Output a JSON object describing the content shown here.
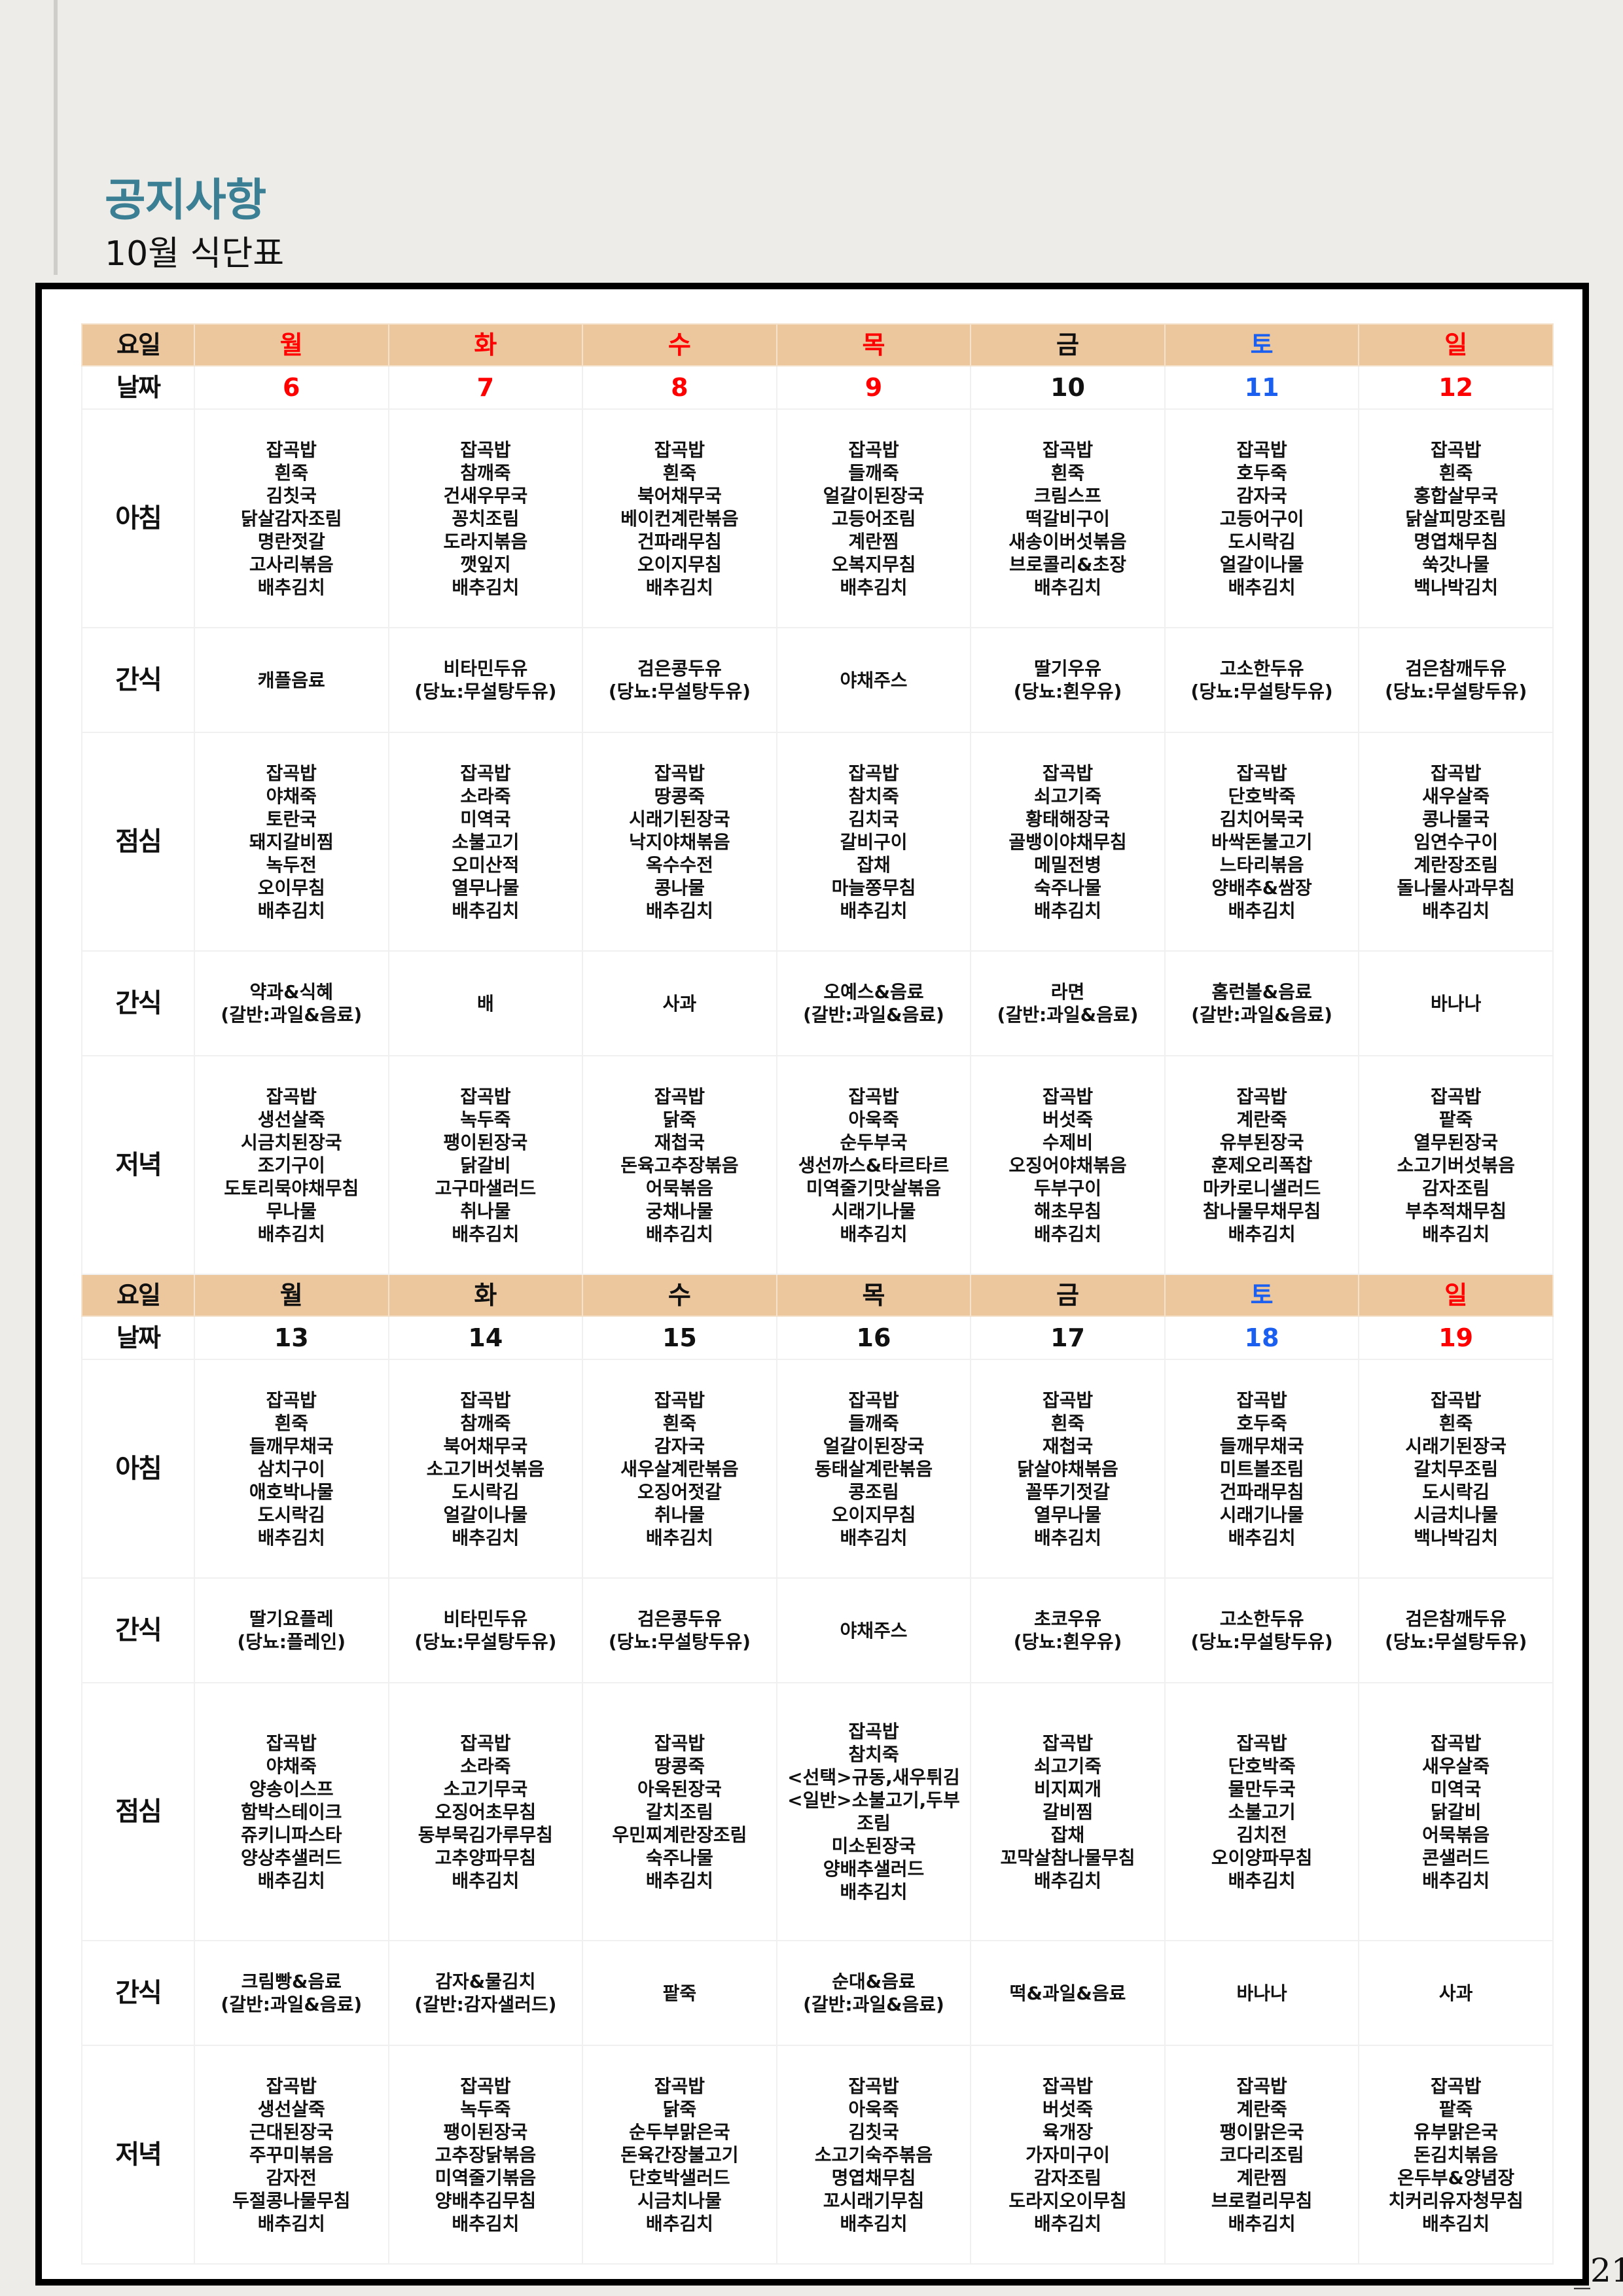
{
  "header": {
    "title": "공지사항",
    "subtitle": "10월 식단표"
  },
  "page_number": "_21",
  "colors": {
    "accent": "#3a7f93",
    "header_bg": "#ecc69c",
    "weekday_red": "#ff0000",
    "saturday_blue": "#1a5ff0",
    "weekday_black": "#111111"
  },
  "labels": {
    "day": "요일",
    "date": "날짜",
    "breakfast": "아침",
    "snack": "간식",
    "lunch": "점심",
    "dinner": "저녁"
  },
  "weeks": [
    {
      "days": [
        {
          "name": "월",
          "date": "6",
          "color": "#ff0000"
        },
        {
          "name": "화",
          "date": "7",
          "color": "#ff0000"
        },
        {
          "name": "수",
          "date": "8",
          "color": "#ff0000"
        },
        {
          "name": "목",
          "date": "9",
          "color": "#ff0000"
        },
        {
          "name": "금",
          "date": "10",
          "color": "#111111"
        },
        {
          "name": "토",
          "date": "11",
          "color": "#1a5ff0"
        },
        {
          "name": "일",
          "date": "12",
          "color": "#ff0000"
        }
      ],
      "breakfast": [
        [
          "잡곡밥",
          "흰죽",
          "김칫국",
          "닭살감자조림",
          "명란젓갈",
          "고사리볶음",
          "배추김치"
        ],
        [
          "잡곡밥",
          "참깨죽",
          "건새우무국",
          "꽁치조림",
          "도라지볶음",
          "깻잎지",
          "배추김치"
        ],
        [
          "잡곡밥",
          "흰죽",
          "북어채무국",
          "베이컨계란볶음",
          "건파래무침",
          "오이지무침",
          "배추김치"
        ],
        [
          "잡곡밥",
          "들깨죽",
          "얼갈이된장국",
          "고등어조림",
          "계란찜",
          "오복지무침",
          "배추김치"
        ],
        [
          "잡곡밥",
          "흰죽",
          "크림스프",
          "떡갈비구이",
          "새송이버섯볶음",
          "브로콜리&초장",
          "배추김치"
        ],
        [
          "잡곡밥",
          "호두죽",
          "감자국",
          "고등어구이",
          "도시락김",
          "얼갈이나물",
          "배추김치"
        ],
        [
          "잡곡밥",
          "흰죽",
          "홍합살무국",
          "닭살피망조림",
          "명엽채무침",
          "쑥갓나물",
          "백나박김치"
        ]
      ],
      "snack_am": [
        [
          "캐플음료"
        ],
        [
          "비타민두유",
          "(당뇨:무설탕두유)"
        ],
        [
          "검은콩두유",
          "(당뇨:무설탕두유)"
        ],
        [
          "야채주스"
        ],
        [
          "딸기우유",
          "(당뇨:흰우유)"
        ],
        [
          "고소한두유",
          "(당뇨:무설탕두유)"
        ],
        [
          "검은참깨두유",
          "(당뇨:무설탕두유)"
        ]
      ],
      "lunch": [
        [
          "잡곡밥",
          "야채죽",
          "토란국",
          "돼지갈비찜",
          "녹두전",
          "오이무침",
          "배추김치"
        ],
        [
          "잡곡밥",
          "소라죽",
          "미역국",
          "소불고기",
          "오미산적",
          "열무나물",
          "배추김치"
        ],
        [
          "잡곡밥",
          "땅콩죽",
          "시래기된장국",
          "낙지야채볶음",
          "옥수수전",
          "콩나물",
          "배추김치"
        ],
        [
          "잡곡밥",
          "참치죽",
          "김치국",
          "갈비구이",
          "잡채",
          "마늘쫑무침",
          "배추김치"
        ],
        [
          "잡곡밥",
          "쇠고기죽",
          "황태해장국",
          "골뱅이야채무침",
          "메밀전병",
          "숙주나물",
          "배추김치"
        ],
        [
          "잡곡밥",
          "단호박죽",
          "김치어묵국",
          "바싹돈불고기",
          "느타리볶음",
          "양배추&쌈장",
          "배추김치"
        ],
        [
          "잡곡밥",
          "새우살죽",
          "콩나물국",
          "임연수구이",
          "계란장조림",
          "돌나물사과무침",
          "배추김치"
        ]
      ],
      "snack_pm": [
        [
          "약과&식혜",
          "(갈반:과일&음료)"
        ],
        [
          "배"
        ],
        [
          "사과"
        ],
        [
          "오예스&음료",
          "(갈반:과일&음료)"
        ],
        [
          "라면",
          "(갈반:과일&음료)"
        ],
        [
          "홈런볼&음료",
          "(갈반:과일&음료)"
        ],
        [
          "바나나"
        ]
      ],
      "dinner": [
        [
          "잡곡밥",
          "생선살죽",
          "시금치된장국",
          "조기구이",
          "도토리묵야채무침",
          "무나물",
          "배추김치"
        ],
        [
          "잡곡밥",
          "녹두죽",
          "팽이된장국",
          "닭갈비",
          "고구마샐러드",
          "취나물",
          "배추김치"
        ],
        [
          "잡곡밥",
          "닭죽",
          "재첩국",
          "돈육고추장볶음",
          "어묵볶음",
          "궁채나물",
          "배추김치"
        ],
        [
          "잡곡밥",
          "아욱죽",
          "순두부국",
          "생선까스&타르타르",
          "미역줄기맛살볶음",
          "시래기나물",
          "배추김치"
        ],
        [
          "잡곡밥",
          "버섯죽",
          "수제비",
          "오징어야채볶음",
          "두부구이",
          "해초무침",
          "배추김치"
        ],
        [
          "잡곡밥",
          "계란죽",
          "유부된장국",
          "훈제오리폭찹",
          "마카로니샐러드",
          "참나물무채무침",
          "배추김치"
        ],
        [
          "잡곡밥",
          "팥죽",
          "열무된장국",
          "소고기버섯볶음",
          "감자조림",
          "부추적채무침",
          "배추김치"
        ]
      ]
    },
    {
      "days": [
        {
          "name": "월",
          "date": "13",
          "color": "#111111"
        },
        {
          "name": "화",
          "date": "14",
          "color": "#111111"
        },
        {
          "name": "수",
          "date": "15",
          "color": "#111111"
        },
        {
          "name": "목",
          "date": "16",
          "color": "#111111"
        },
        {
          "name": "금",
          "date": "17",
          "color": "#111111"
        },
        {
          "name": "토",
          "date": "18",
          "color": "#1a5ff0"
        },
        {
          "name": "일",
          "date": "19",
          "color": "#ff0000"
        }
      ],
      "breakfast": [
        [
          "잡곡밥",
          "흰죽",
          "들깨무채국",
          "삼치구이",
          "애호박나물",
          "도시락김",
          "배추김치"
        ],
        [
          "잡곡밥",
          "참깨죽",
          "북어채무국",
          "소고기버섯볶음",
          "도시락김",
          "얼갈이나물",
          "배추김치"
        ],
        [
          "잡곡밥",
          "흰죽",
          "감자국",
          "새우살계란볶음",
          "오징어젓갈",
          "취나물",
          "배추김치"
        ],
        [
          "잡곡밥",
          "들깨죽",
          "얼갈이된장국",
          "동태살계란볶음",
          "콩조림",
          "오이지무침",
          "배추김치"
        ],
        [
          "잡곡밥",
          "흰죽",
          "재첩국",
          "닭살야채볶음",
          "꼴뚜기젓갈",
          "열무나물",
          "배추김치"
        ],
        [
          "잡곡밥",
          "호두죽",
          "들깨무채국",
          "미트볼조림",
          "건파래무침",
          "시래기나물",
          "배추김치"
        ],
        [
          "잡곡밥",
          "흰죽",
          "시래기된장국",
          "갈치무조림",
          "도시락김",
          "시금치나물",
          "백나박김치"
        ]
      ],
      "snack_am": [
        [
          "딸기요플레",
          "(당뇨:플레인)"
        ],
        [
          "비타민두유",
          "(당뇨:무설탕두유)"
        ],
        [
          "검은콩두유",
          "(당뇨:무설탕두유)"
        ],
        [
          "야채주스"
        ],
        [
          "초코우유",
          "(당뇨:흰우유)"
        ],
        [
          "고소한두유",
          "(당뇨:무설탕두유)"
        ],
        [
          "검은참깨두유",
          "(당뇨:무설탕두유)"
        ]
      ],
      "lunch": [
        [
          "잡곡밥",
          "야채죽",
          "양송이스프",
          "함박스테이크",
          "쥬키니파스타",
          "양상추샐러드",
          "배추김치"
        ],
        [
          "잡곡밥",
          "소라죽",
          "소고기무국",
          "오징어초무침",
          "동부묵김가루무침",
          "고추양파무침",
          "배추김치"
        ],
        [
          "잡곡밥",
          "땅콩죽",
          "아욱된장국",
          "갈치조림",
          "우민찌계란장조림",
          "숙주나물",
          "배추김치"
        ],
        [
          "잡곡밥",
          "참치죽",
          "<선택>규동,새우튀김",
          "<일반>소불고기,두부",
          "조림",
          "미소된장국",
          "양배추샐러드",
          "배추김치"
        ],
        [
          "잡곡밥",
          "쇠고기죽",
          "비지찌개",
          "갈비찜",
          "잡채",
          "꼬막살참나물무침",
          "배추김치"
        ],
        [
          "잡곡밥",
          "단호박죽",
          "물만두국",
          "소불고기",
          "김치전",
          "오이양파무침",
          "배추김치"
        ],
        [
          "잡곡밥",
          "새우살죽",
          "미역국",
          "닭갈비",
          "어묵볶음",
          "콘샐러드",
          "배추김치"
        ]
      ],
      "snack_pm": [
        [
          "크림빵&음료",
          "(갈반:과일&음료)"
        ],
        [
          "감자&물김치",
          "(갈반:감자샐러드)"
        ],
        [
          "팥죽"
        ],
        [
          "순대&음료",
          "(갈반:과일&음료)"
        ],
        [
          "떡&과일&음료"
        ],
        [
          "바나나"
        ],
        [
          "사과"
        ]
      ],
      "dinner": [
        [
          "잡곡밥",
          "생선살죽",
          "근대된장국",
          "주꾸미볶음",
          "감자전",
          "두절콩나물무침",
          "배추김치"
        ],
        [
          "잡곡밥",
          "녹두죽",
          "팽이된장국",
          "고추장닭볶음",
          "미역줄기볶음",
          "양배추김무침",
          "배추김치"
        ],
        [
          "잡곡밥",
          "닭죽",
          "순두부맑은국",
          "돈육간장불고기",
          "단호박샐러드",
          "시금치나물",
          "배추김치"
        ],
        [
          "잡곡밥",
          "아욱죽",
          "김칫국",
          "소고기숙주볶음",
          "명엽채무침",
          "꼬시래기무침",
          "배추김치"
        ],
        [
          "잡곡밥",
          "버섯죽",
          "육개장",
          "가자미구이",
          "감자조림",
          "도라지오이무침",
          "배추김치"
        ],
        [
          "잡곡밥",
          "계란죽",
          "팽이맑은국",
          "코다리조림",
          "계란찜",
          "브로컬리무침",
          "배추김치"
        ],
        [
          "잡곡밥",
          "팥죽",
          "유부맑은국",
          "돈김치볶음",
          "온두부&양념장",
          "치커리유자청무침",
          "배추김치"
        ]
      ]
    }
  ]
}
